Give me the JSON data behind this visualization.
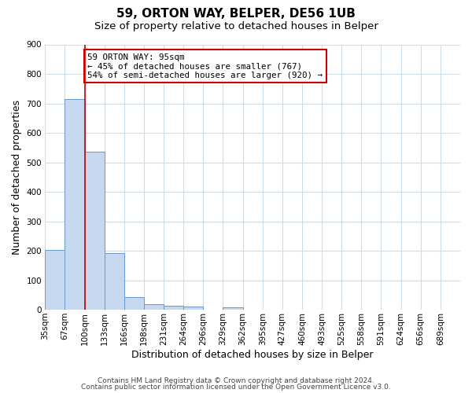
{
  "title": "59, ORTON WAY, BELPER, DE56 1UB",
  "subtitle": "Size of property relative to detached houses in Belper",
  "xlabel": "Distribution of detached houses by size in Belper",
  "ylabel": "Number of detached properties",
  "bin_labels": [
    "35sqm",
    "67sqm",
    "100sqm",
    "133sqm",
    "166sqm",
    "198sqm",
    "231sqm",
    "264sqm",
    "296sqm",
    "329sqm",
    "362sqm",
    "395sqm",
    "427sqm",
    "460sqm",
    "493sqm",
    "525sqm",
    "558sqm",
    "591sqm",
    "624sqm",
    "656sqm",
    "689sqm"
  ],
  "bar_values": [
    202,
    714,
    536,
    193,
    44,
    20,
    14,
    11,
    0,
    8,
    0,
    0,
    0,
    0,
    0,
    0,
    0,
    0,
    0,
    0,
    0
  ],
  "bar_color": "#c5d8f0",
  "bar_edge_color": "#6699cc",
  "ylim": [
    0,
    900
  ],
  "yticks": [
    0,
    100,
    200,
    300,
    400,
    500,
    600,
    700,
    800,
    900
  ],
  "property_bin_index": 2,
  "vline_color": "#cc0000",
  "annotation_text": "59 ORTON WAY: 95sqm\n← 45% of detached houses are smaller (767)\n54% of semi-detached houses are larger (920) →",
  "annotation_box_color": "#ffffff",
  "annotation_box_edge": "#cc0000",
  "footer_line1": "Contains HM Land Registry data © Crown copyright and database right 2024.",
  "footer_line2": "Contains public sector information licensed under the Open Government Licence v3.0.",
  "background_color": "#ffffff",
  "grid_color": "#ccdde8",
  "title_fontsize": 11,
  "subtitle_fontsize": 9.5,
  "axis_label_fontsize": 9,
  "tick_fontsize": 7.5,
  "footer_fontsize": 6.5
}
